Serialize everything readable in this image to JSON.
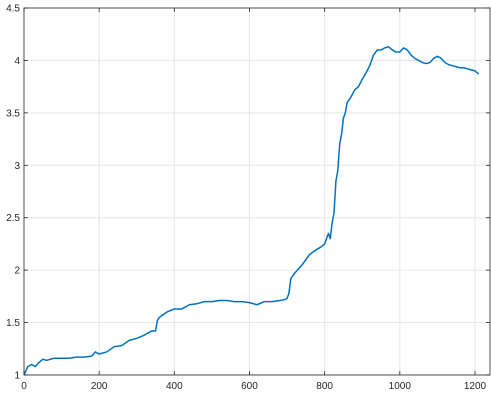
{
  "chart_data": {
    "type": "line",
    "title": "",
    "xlabel": "",
    "ylabel": "",
    "xlim": [
      0,
      1240
    ],
    "ylim": [
      1,
      4.5
    ],
    "xticks": [
      0,
      200,
      400,
      600,
      800,
      1000,
      1200
    ],
    "yticks": [
      1,
      1.5,
      2,
      2.5,
      3,
      3.5,
      4,
      4.5
    ],
    "xtick_labels": [
      "0",
      "200",
      "400",
      "600",
      "800",
      "1000",
      "1200"
    ],
    "ytick_labels": [
      "1",
      "1.5",
      "2",
      "2.5",
      "3",
      "3.5",
      "4",
      "4.5"
    ],
    "grid": true,
    "box": true,
    "colors": {
      "line": "#0072BD",
      "grid": "#e6e6e6",
      "axis": "#262626"
    },
    "series": [
      {
        "x": [
          0,
          10,
          20,
          30,
          40,
          50,
          60,
          80,
          100,
          120,
          140,
          160,
          180,
          190,
          200,
          220,
          240,
          260,
          280,
          300,
          320,
          340,
          350,
          355,
          360,
          380,
          400,
          420,
          440,
          460,
          480,
          500,
          520,
          540,
          560,
          580,
          600,
          620,
          640,
          660,
          680,
          695,
          700,
          705,
          710,
          720,
          740,
          760,
          780,
          790,
          800,
          810,
          815,
          820,
          825,
          830,
          835,
          840,
          845,
          850,
          855,
          860,
          870,
          880,
          890,
          900,
          910,
          920,
          930,
          940,
          950,
          960,
          970,
          980,
          990,
          1000,
          1010,
          1020,
          1030,
          1040,
          1050,
          1060,
          1070,
          1080,
          1090,
          1100,
          1110,
          1120,
          1130,
          1140,
          1150,
          1160,
          1170,
          1180,
          1190,
          1200,
          1210
        ],
        "y": [
          1.0,
          1.08,
          1.1,
          1.08,
          1.12,
          1.15,
          1.14,
          1.16,
          1.16,
          1.16,
          1.17,
          1.17,
          1.18,
          1.22,
          1.2,
          1.22,
          1.27,
          1.28,
          1.33,
          1.35,
          1.38,
          1.42,
          1.42,
          1.52,
          1.55,
          1.6,
          1.63,
          1.63,
          1.67,
          1.68,
          1.7,
          1.7,
          1.71,
          1.71,
          1.7,
          1.7,
          1.69,
          1.67,
          1.7,
          1.7,
          1.71,
          1.72,
          1.73,
          1.78,
          1.92,
          1.97,
          2.05,
          2.15,
          2.2,
          2.22,
          2.25,
          2.35,
          2.3,
          2.45,
          2.55,
          2.85,
          2.95,
          3.2,
          3.3,
          3.45,
          3.5,
          3.6,
          3.65,
          3.72,
          3.75,
          3.82,
          3.88,
          3.95,
          4.05,
          4.1,
          4.1,
          4.12,
          4.13,
          4.1,
          4.08,
          4.08,
          4.12,
          4.1,
          4.05,
          4.02,
          4.0,
          3.98,
          3.97,
          3.98,
          4.02,
          4.04,
          4.02,
          3.98,
          3.96,
          3.95,
          3.94,
          3.93,
          3.93,
          3.92,
          3.91,
          3.9,
          3.87
        ]
      }
    ]
  }
}
